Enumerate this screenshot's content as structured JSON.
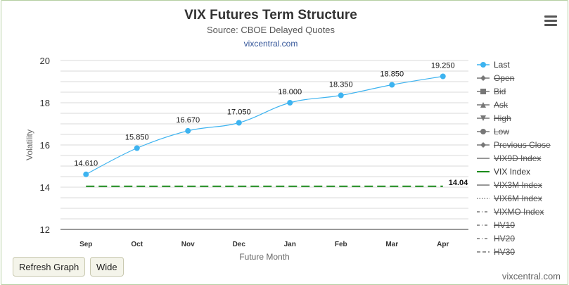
{
  "header": {
    "title": "VIX Futures Term Structure",
    "subtitle": "Source: CBOE Delayed Quotes",
    "site": "vixcentral.com"
  },
  "buttons": {
    "refresh": "Refresh Graph",
    "wide": "Wide"
  },
  "footer": {
    "credit": "vixcentral.com"
  },
  "colors": {
    "last": "#3db3f0",
    "vix": "#1a8c1a",
    "grid": "#d8d8d8"
  },
  "legend": [
    {
      "label": "Last",
      "symbol": "circle",
      "line": "solid",
      "color": "#3db3f0",
      "active": true
    },
    {
      "label": "Open",
      "symbol": "diamond",
      "line": "solid",
      "color": "#777777",
      "active": false
    },
    {
      "label": "Bid",
      "symbol": "square",
      "line": "solid",
      "color": "#777777",
      "active": false
    },
    {
      "label": "Ask",
      "symbol": "triangle",
      "line": "solid",
      "color": "#777777",
      "active": false
    },
    {
      "label": "High",
      "symbol": "triangle-down",
      "line": "solid",
      "color": "#777777",
      "active": false
    },
    {
      "label": "Low",
      "symbol": "circle",
      "line": "solid",
      "color": "#777777",
      "active": false
    },
    {
      "label": "Previous Close",
      "symbol": "diamond",
      "line": "solid",
      "color": "#777777",
      "active": false
    },
    {
      "label": "VIX9D Index",
      "symbol": "none",
      "line": "solid",
      "color": "#777777",
      "active": false
    },
    {
      "label": "VIX Index",
      "symbol": "none",
      "line": "solid",
      "color": "#1a8c1a",
      "active": true
    },
    {
      "label": "VIX3M Index",
      "symbol": "none",
      "line": "solid",
      "color": "#777777",
      "active": false
    },
    {
      "label": "VIX6M Index",
      "symbol": "none",
      "line": "dotted",
      "color": "#777777",
      "active": false
    },
    {
      "label": "VIXMO Index",
      "symbol": "none",
      "line": "dashdot",
      "color": "#777777",
      "active": false
    },
    {
      "label": "HV10",
      "symbol": "none",
      "line": "dashdot",
      "color": "#777777",
      "active": false
    },
    {
      "label": "HV20",
      "symbol": "none",
      "line": "dashdot",
      "color": "#777777",
      "active": false
    },
    {
      "label": "HV30",
      "symbol": "none",
      "line": "dashed",
      "color": "#777777",
      "active": false
    }
  ],
  "chart_data": {
    "type": "line",
    "title": "VIX Futures Term Structure",
    "subtitle": "Source: CBOE Delayed Quotes",
    "xlabel": "Future Month",
    "ylabel": "Volatility",
    "categories": [
      "Sep",
      "Oct",
      "Nov",
      "Dec",
      "Jan",
      "Feb",
      "Mar",
      "Apr"
    ],
    "ylim": [
      12,
      20
    ],
    "yticks": [
      12,
      14,
      16,
      18,
      20
    ],
    "grid": true,
    "legend_position": "right",
    "series": [
      {
        "name": "Last",
        "values": [
          14.61,
          15.85,
          16.67,
          17.05,
          18.0,
          18.35,
          18.85,
          19.25
        ],
        "labels": [
          "14.610",
          "15.850",
          "16.670",
          "17.050",
          "18.000",
          "18.350",
          "18.850",
          "19.250"
        ]
      },
      {
        "name": "VIX Index",
        "values": [
          14.04,
          14.04,
          14.04,
          14.04,
          14.04,
          14.04,
          14.04,
          14.04
        ],
        "end_label": "14.04"
      }
    ]
  }
}
